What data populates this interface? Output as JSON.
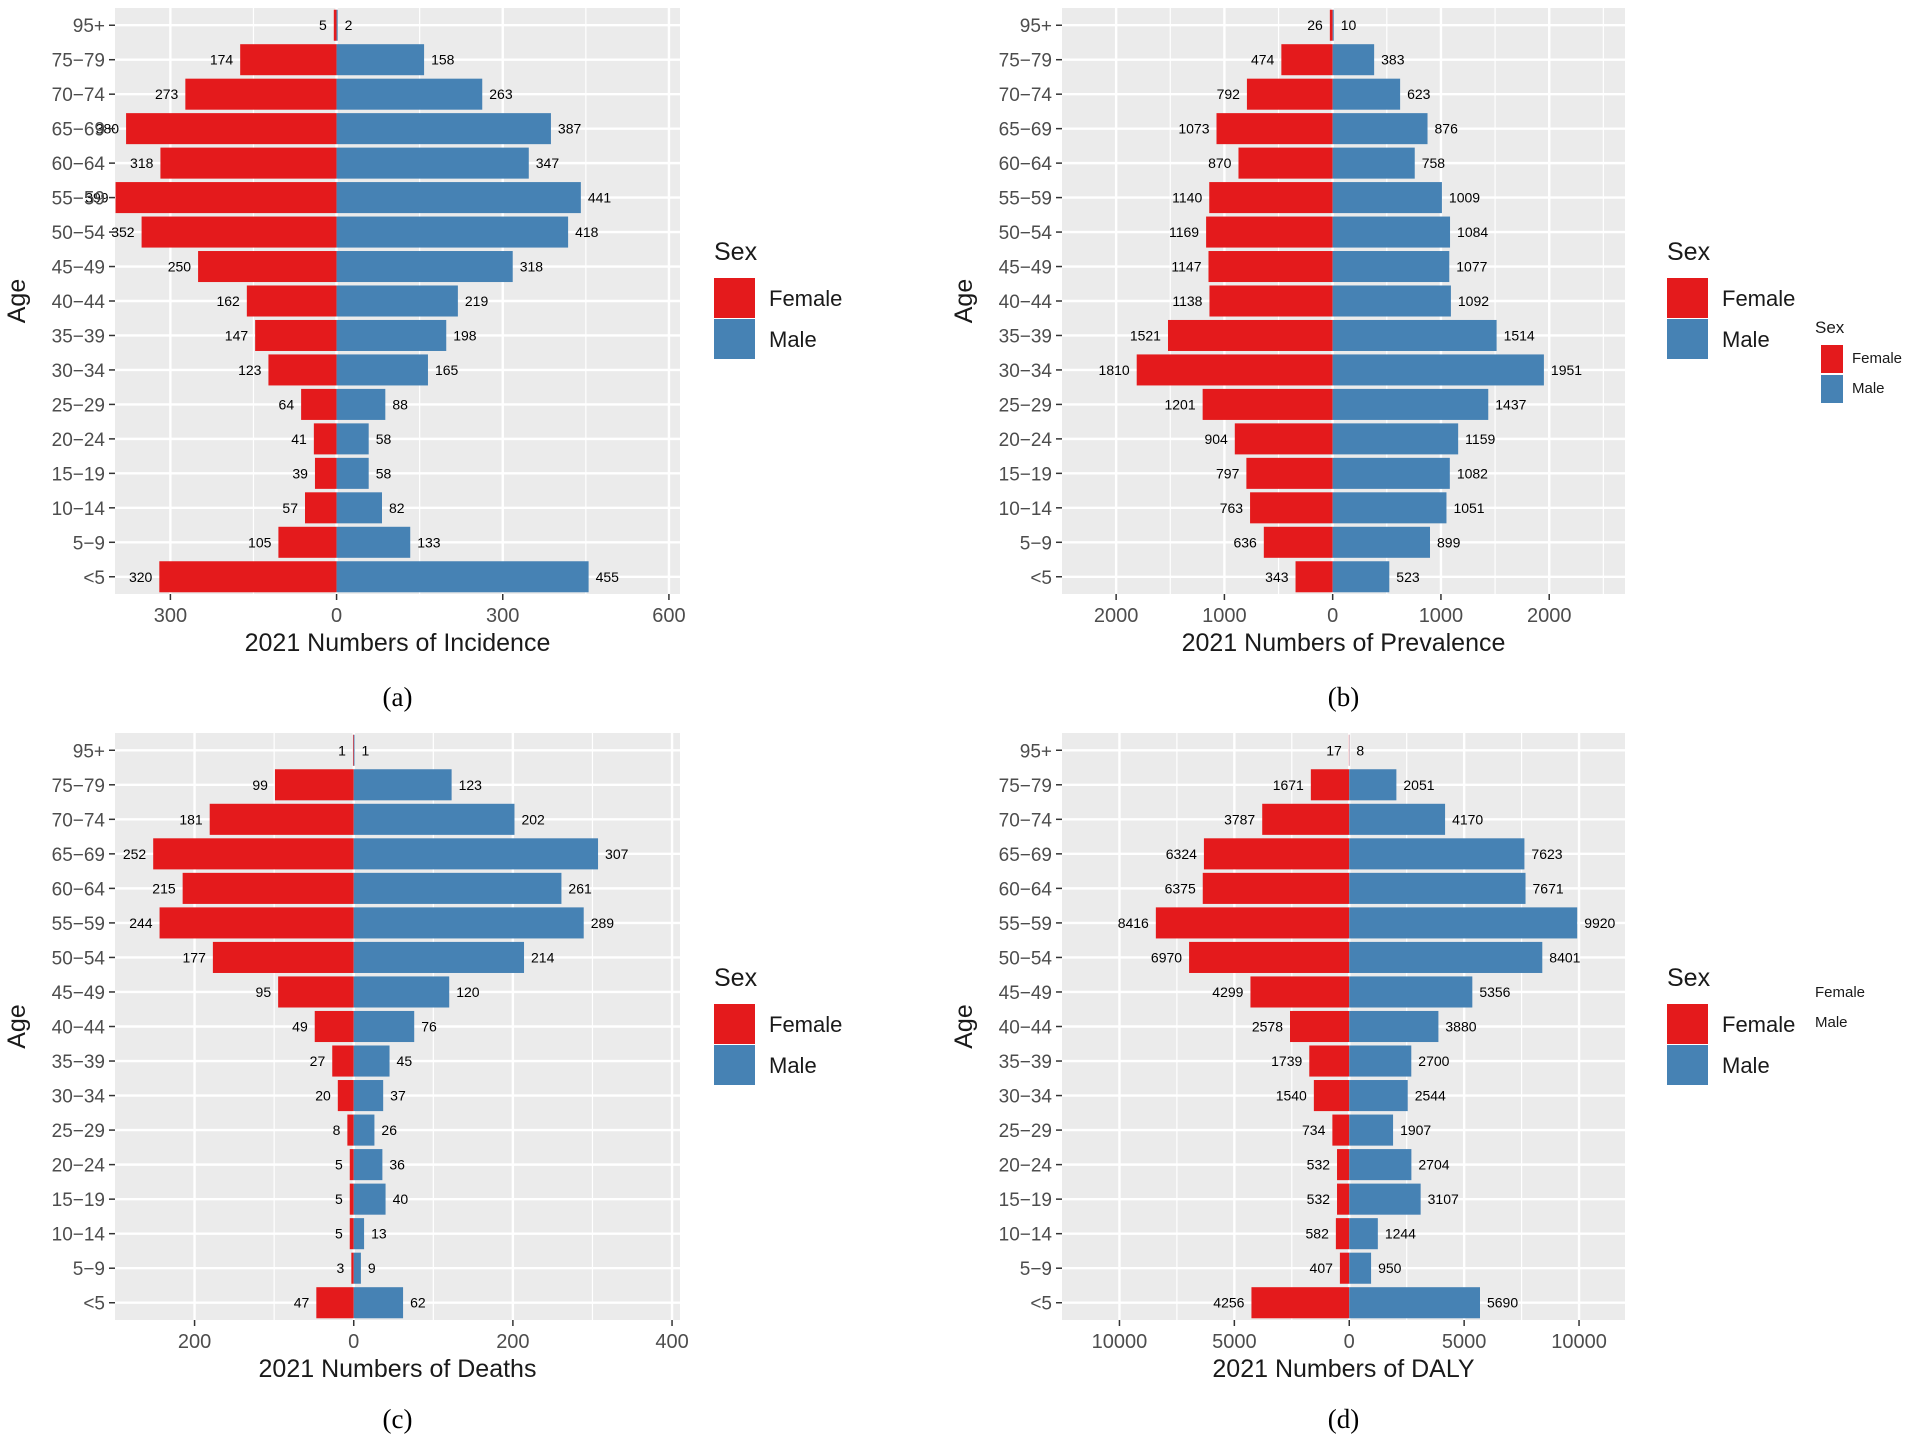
{
  "colors": {
    "female": "#E41A1C",
    "male": "#4682B4",
    "panel": "#EBEBEB",
    "grid": "#FFFFFF"
  },
  "chart_data": [
    {
      "type": "bar",
      "caption": "(a)",
      "title": "",
      "xlabel": "2021 Numbers of Incidence",
      "ylabel": "Age",
      "categories": [
        "95+",
        "75−79",
        "70−74",
        "65−69",
        "60−64",
        "55−59",
        "50−54",
        "45−49",
        "40−44",
        "35−39",
        "30−34",
        "25−29",
        "20−24",
        "15−19",
        "10−14",
        "5−9",
        "<5"
      ],
      "series": [
        {
          "name": "Female",
          "values": [
            5,
            174,
            273,
            380,
            318,
            399,
            352,
            250,
            162,
            147,
            123,
            64,
            41,
            39,
            57,
            105,
            320
          ]
        },
        {
          "name": "Male",
          "values": [
            2,
            158,
            263,
            387,
            347,
            441,
            418,
            318,
            219,
            198,
            165,
            88,
            58,
            58,
            82,
            133,
            455
          ]
        }
      ],
      "xlim": [
        -400,
        620
      ],
      "xticks": [
        -300,
        0,
        300,
        600
      ],
      "xtick_labels": [
        "300",
        "0",
        "300",
        "600"
      ],
      "legend": {
        "title": "Sex",
        "entries": [
          "Female",
          "Male"
        ],
        "position": "right"
      }
    },
    {
      "type": "bar",
      "caption": "(b)",
      "title": "",
      "xlabel": "2021 Numbers of Prevalence",
      "ylabel": "Age",
      "categories": [
        "95+",
        "75−79",
        "70−74",
        "65−69",
        "60−64",
        "55−59",
        "50−54",
        "45−49",
        "40−44",
        "35−39",
        "30−34",
        "25−29",
        "20−24",
        "15−19",
        "10−14",
        "5−9",
        "<5"
      ],
      "series": [
        {
          "name": "Female",
          "values": [
            26,
            474,
            792,
            1073,
            870,
            1140,
            1169,
            1147,
            1138,
            1521,
            1810,
            1201,
            904,
            797,
            763,
            636,
            343
          ]
        },
        {
          "name": "Male",
          "values": [
            10,
            383,
            623,
            876,
            758,
            1009,
            1084,
            1077,
            1092,
            1514,
            1951,
            1437,
            1159,
            1082,
            1051,
            899,
            523
          ]
        }
      ],
      "xlim": [
        -2500,
        2700
      ],
      "xticks": [
        -2000,
        -1000,
        0,
        1000,
        2000
      ],
      "xtick_labels": [
        "2000",
        "1000",
        "0",
        "1000",
        "2000"
      ],
      "legend": {
        "title": "Sex",
        "entries": [
          "Female",
          "Male"
        ],
        "position": "right"
      },
      "ghost_legend": {
        "title": "Sex",
        "entries": [
          "Female",
          "Male"
        ]
      }
    },
    {
      "type": "bar",
      "caption": "(c)",
      "title": "",
      "xlabel": "2021 Numbers of Deaths",
      "ylabel": "Age",
      "categories": [
        "95+",
        "75−79",
        "70−74",
        "65−69",
        "60−64",
        "55−59",
        "50−54",
        "45−49",
        "40−44",
        "35−39",
        "30−34",
        "25−29",
        "20−24",
        "15−19",
        "10−14",
        "5−9",
        "<5"
      ],
      "series": [
        {
          "name": "Female",
          "values": [
            1,
            99,
            181,
            252,
            215,
            244,
            177,
            95,
            49,
            27,
            20,
            8,
            5,
            5,
            5,
            3,
            47
          ]
        },
        {
          "name": "Male",
          "values": [
            1,
            123,
            202,
            307,
            261,
            289,
            214,
            120,
            76,
            45,
            37,
            26,
            36,
            40,
            13,
            9,
            62
          ]
        }
      ],
      "xlim": [
        -300,
        410
      ],
      "xticks": [
        -200,
        0,
        200,
        400
      ],
      "xtick_labels": [
        "200",
        "0",
        "200",
        "400"
      ],
      "legend": {
        "title": "Sex",
        "entries": [
          "Female",
          "Male"
        ],
        "position": "right"
      }
    },
    {
      "type": "bar",
      "caption": "(d)",
      "title": "",
      "xlabel": "2021 Numbers of DALY",
      "ylabel": "Age",
      "categories": [
        "95+",
        "75−79",
        "70−74",
        "65−69",
        "60−64",
        "55−59",
        "50−54",
        "45−49",
        "40−44",
        "35−39",
        "30−34",
        "25−29",
        "20−24",
        "15−19",
        "10−14",
        "5−9",
        "<5"
      ],
      "series": [
        {
          "name": "Female",
          "values": [
            17,
            1671,
            3787,
            6324,
            6375,
            8416,
            6970,
            4299,
            2578,
            1739,
            1540,
            734,
            532,
            532,
            582,
            407,
            4256
          ]
        },
        {
          "name": "Male",
          "values": [
            8,
            2051,
            4170,
            7623,
            7671,
            9920,
            8401,
            5356,
            3880,
            2700,
            2544,
            1907,
            2704,
            3107,
            1244,
            950,
            5690
          ]
        }
      ],
      "xlim": [
        -12500,
        12000
      ],
      "xticks": [
        -10000,
        -5000,
        0,
        5000,
        10000
      ],
      "xtick_labels": [
        "10000",
        "5000",
        "0",
        "5000",
        "10000"
      ],
      "legend": {
        "title": "Sex",
        "entries": [
          "Female",
          "Male"
        ],
        "position": "right"
      },
      "ghost_legend": {
        "title": "",
        "entries": [
          "Female",
          "Male"
        ]
      }
    }
  ]
}
